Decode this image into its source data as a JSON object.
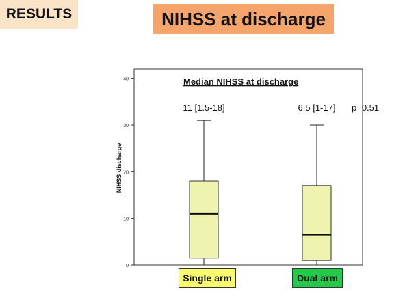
{
  "header": {
    "tag": "RESULTS",
    "title": "NIHSS at discharge"
  },
  "colors": {
    "tag_bg": "#fbe3c7",
    "title_bg": "#f5a46c",
    "box_fill": "#eef3b0",
    "single_label_bg": "#fbfb6e",
    "dual_label_bg": "#22c94a"
  },
  "chart_data": {
    "type": "boxplot",
    "title": "Median NIHSS at discharge",
    "ylabel": "NIHSS discharge",
    "ylim": [
      0,
      42
    ],
    "yticks": [
      0,
      10,
      20,
      30,
      40
    ],
    "categories": [
      "Single arm",
      "Dual arm"
    ],
    "boxes": [
      {
        "name": "Single arm",
        "min": 0,
        "q1": 1.5,
        "median": 11,
        "q3": 18,
        "max": 31,
        "summary": "11 [1.5-18]"
      },
      {
        "name": "Dual arm",
        "min": 0,
        "q1": 1,
        "median": 6.5,
        "q3": 17,
        "max": 30,
        "summary": "6.5 [1-17]"
      }
    ],
    "p_value": "p=0.51"
  }
}
